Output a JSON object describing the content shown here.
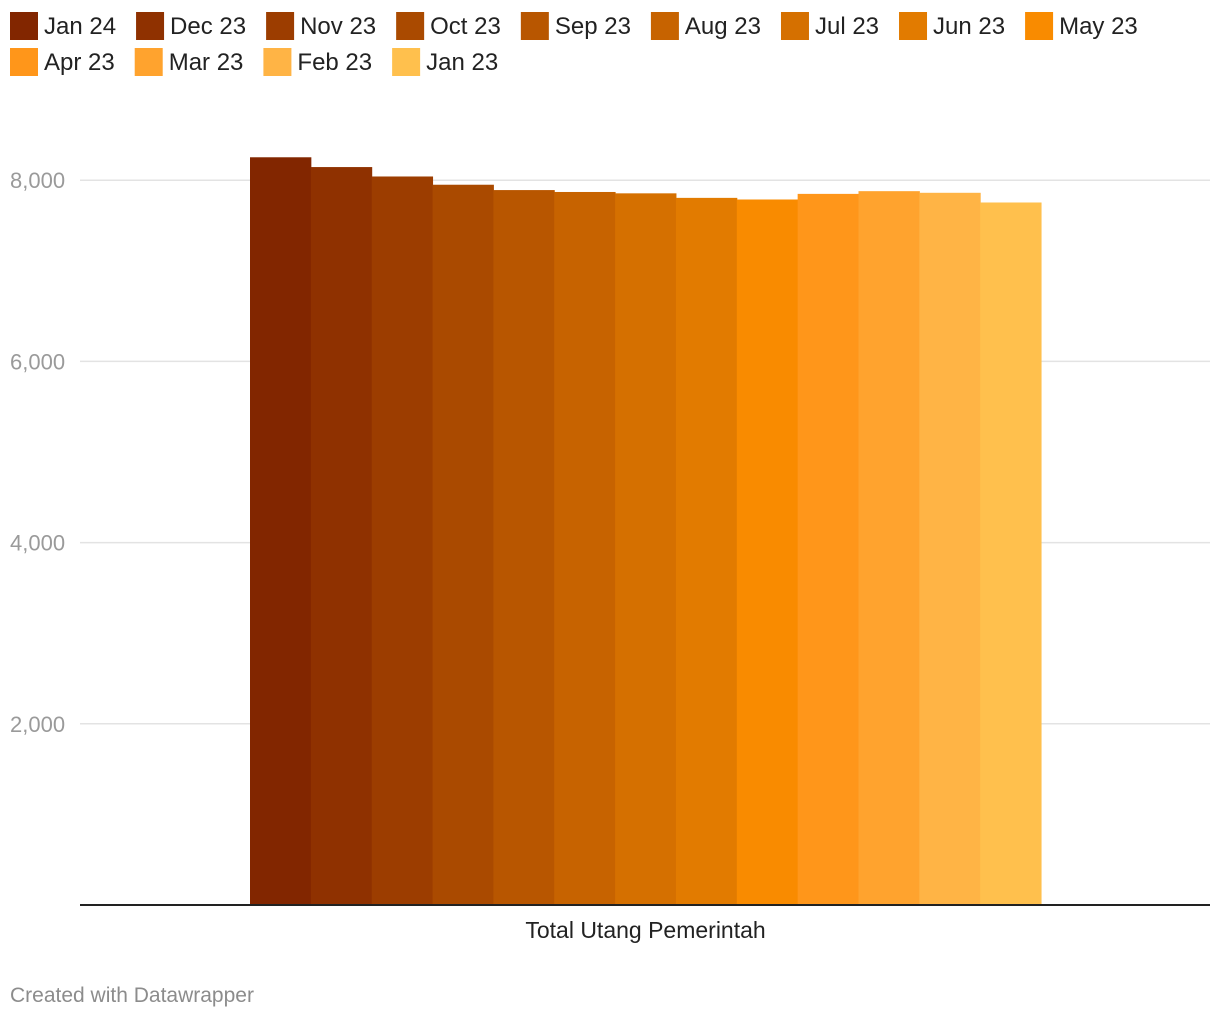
{
  "chart_data": {
    "type": "bar",
    "categories": [
      "Total Utang Pemerintah"
    ],
    "series": [
      {
        "name": "Jan 24",
        "values": [
          8253
        ],
        "color": "#822600"
      },
      {
        "name": "Dec 23",
        "values": [
          8145
        ],
        "color": "#8f3100"
      },
      {
        "name": "Nov 23",
        "values": [
          8041
        ],
        "color": "#9c3d00"
      },
      {
        "name": "Oct 23",
        "values": [
          7950
        ],
        "color": "#aa4a00"
      },
      {
        "name": "Sep 23",
        "values": [
          7891
        ],
        "color": "#b85600"
      },
      {
        "name": "Aug 23",
        "values": [
          7870
        ],
        "color": "#c76300"
      },
      {
        "name": "Jul 23",
        "values": [
          7855
        ],
        "color": "#d57000"
      },
      {
        "name": "Jun 23",
        "values": [
          7805
        ],
        "color": "#e27b00"
      },
      {
        "name": "May 23",
        "values": [
          7787
        ],
        "color": "#f98b00"
      },
      {
        "name": "Apr 23",
        "values": [
          7849
        ],
        "color": "#ff961a"
      },
      {
        "name": "Mar 23",
        "values": [
          7879
        ],
        "color": "#ffa32e"
      },
      {
        "name": "Feb 23",
        "values": [
          7861
        ],
        "color": "#ffb445"
      },
      {
        "name": "Jan 23",
        "values": [
          7754
        ],
        "color": "#ffc04d"
      }
    ],
    "y_ticks": [
      "2,000",
      "4,000",
      "6,000",
      "8,000"
    ],
    "y_tick_values": [
      2000,
      4000,
      6000,
      8000
    ],
    "ylim": [
      0,
      9000
    ],
    "grid": true,
    "legend": "top-left"
  },
  "credit": "Created with Datawrapper"
}
